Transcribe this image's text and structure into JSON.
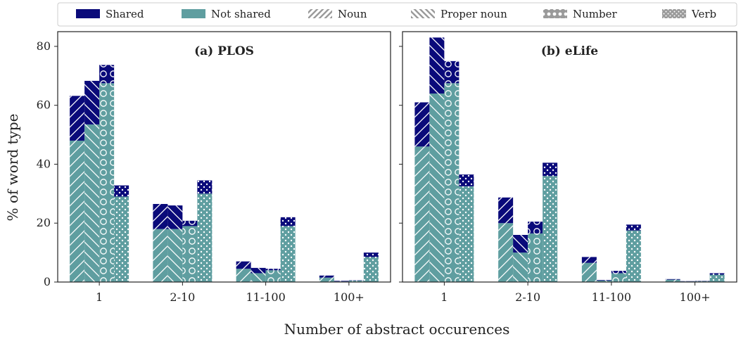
{
  "legend": {
    "entries": [
      {
        "key": "shared",
        "label": "Shared"
      },
      {
        "key": "not_shared",
        "label": "Not shared"
      },
      {
        "key": "noun",
        "label": "Noun"
      },
      {
        "key": "proper_noun",
        "label": "Proper noun"
      },
      {
        "key": "number",
        "label": "Number"
      },
      {
        "key": "verb",
        "label": "Verb"
      }
    ],
    "placement": "top"
  },
  "colors": {
    "shared": "#0a0a7a",
    "not_shared": "#5f9ea0",
    "hatch_line": "#ffffff",
    "frame": "#222222"
  },
  "xlabel": "Number of abstract occurences",
  "ylabel": "% of word type",
  "chart_data": [
    {
      "type": "bar",
      "stacked": true,
      "title": "(a) PLOS",
      "categories": [
        "1",
        "2-10",
        "11-100",
        "100+"
      ],
      "ylim": [
        0,
        85
      ],
      "yticks": [
        0,
        20,
        40,
        60,
        80
      ],
      "grid": false,
      "series": [
        {
          "word_type": "noun",
          "pattern": "noun",
          "not_shared": [
            48,
            18,
            4.5,
            1.5
          ],
          "shared": [
            15.2,
            8.5,
            2.5,
            0.7
          ]
        },
        {
          "word_type": "proper_noun",
          "pattern": "proper_noun",
          "not_shared": [
            53.5,
            18,
            3,
            0.2
          ],
          "shared": [
            14.8,
            8,
            1.8,
            0.2
          ]
        },
        {
          "word_type": "number",
          "pattern": "number",
          "not_shared": [
            67.5,
            19,
            4,
            0.5
          ],
          "shared": [
            6.2,
            1.8,
            0.5,
            0.1
          ]
        },
        {
          "word_type": "verb",
          "pattern": "verb",
          "not_shared": [
            29,
            30,
            19,
            8.5
          ],
          "shared": [
            3.8,
            4.5,
            3,
            1.5
          ]
        }
      ]
    },
    {
      "type": "bar",
      "stacked": true,
      "title": "(b) eLife",
      "categories": [
        "1",
        "2-10",
        "11-100",
        "100+"
      ],
      "ylim": [
        0,
        85
      ],
      "yticks": [
        0,
        20,
        40,
        60,
        80
      ],
      "grid": false,
      "series": [
        {
          "word_type": "noun",
          "pattern": "noun",
          "not_shared": [
            46,
            20,
            6.5,
            0.8
          ],
          "shared": [
            15,
            8.7,
            2,
            0.2
          ]
        },
        {
          "word_type": "proper_noun",
          "pattern": "proper_noun",
          "not_shared": [
            64,
            10,
            0.5,
            0.2
          ],
          "shared": [
            19,
            6,
            0.2,
            0.1
          ]
        },
        {
          "word_type": "number",
          "pattern": "number",
          "not_shared": [
            67.5,
            16.5,
            3,
            0.3
          ],
          "shared": [
            7.5,
            4,
            0.8,
            0.1
          ]
        },
        {
          "word_type": "verb",
          "pattern": "verb",
          "not_shared": [
            32.5,
            36,
            17.5,
            2.5
          ],
          "shared": [
            4,
            4.5,
            2,
            0.5
          ]
        }
      ]
    }
  ]
}
